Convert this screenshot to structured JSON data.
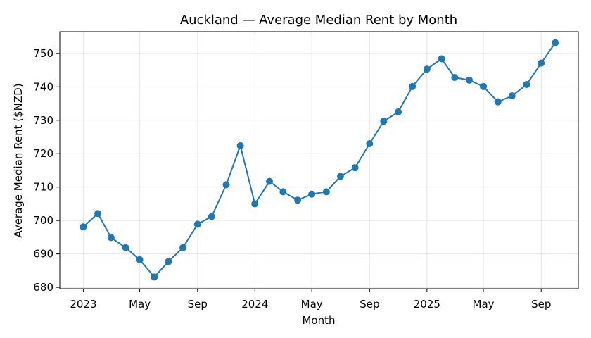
{
  "chart_data": {
    "type": "line",
    "title": "Auckland — Average Median Rent by Month",
    "xlabel": "Month",
    "ylabel": "Average Median Rent ($NZD)",
    "ylim": [
      679.6,
      756.5
    ],
    "xlim": [
      "2022-11-12",
      "2025-11-19"
    ],
    "yticks": [
      680,
      690,
      700,
      710,
      720,
      730,
      740,
      750
    ],
    "xticks": [
      {
        "date": "2023-01-01",
        "label": "2023"
      },
      {
        "date": "2023-05-01",
        "label": "May"
      },
      {
        "date": "2023-09-01",
        "label": "Sep"
      },
      {
        "date": "2024-01-01",
        "label": "2024"
      },
      {
        "date": "2024-05-01",
        "label": "May"
      },
      {
        "date": "2024-09-01",
        "label": "Sep"
      },
      {
        "date": "2025-01-01",
        "label": "2025"
      },
      {
        "date": "2025-05-01",
        "label": "May"
      },
      {
        "date": "2025-09-01",
        "label": "Sep"
      }
    ],
    "grid": true,
    "x": [
      "2023-01",
      "2023-02",
      "2023-03",
      "2023-04",
      "2023-05",
      "2023-06",
      "2023-07",
      "2023-08",
      "2023-09",
      "2023-10",
      "2023-11",
      "2023-12",
      "2024-01",
      "2024-02",
      "2024-03",
      "2024-04",
      "2024-05",
      "2024-06",
      "2024-07",
      "2024-08",
      "2024-09",
      "2024-10",
      "2024-11",
      "2024-12",
      "2025-01",
      "2025-02",
      "2025-03",
      "2025-04",
      "2025-05",
      "2025-06",
      "2025-07",
      "2025-08",
      "2025-09",
      "2025-10"
    ],
    "series": [
      {
        "name": "",
        "color": "#1f77b4",
        "values": [
          698.1,
          702.1,
          694.9,
          691.9,
          688.3,
          683.1,
          687.7,
          691.9,
          698.9,
          701.2,
          710.7,
          722.4,
          705.0,
          711.7,
          708.6,
          706.1,
          707.9,
          708.6,
          713.2,
          715.8,
          723.0,
          729.7,
          732.5,
          740.1,
          745.3,
          748.4,
          742.8,
          742.0,
          740.1,
          735.5,
          737.3,
          740.7,
          747.1,
          753.2
        ]
      }
    ]
  }
}
